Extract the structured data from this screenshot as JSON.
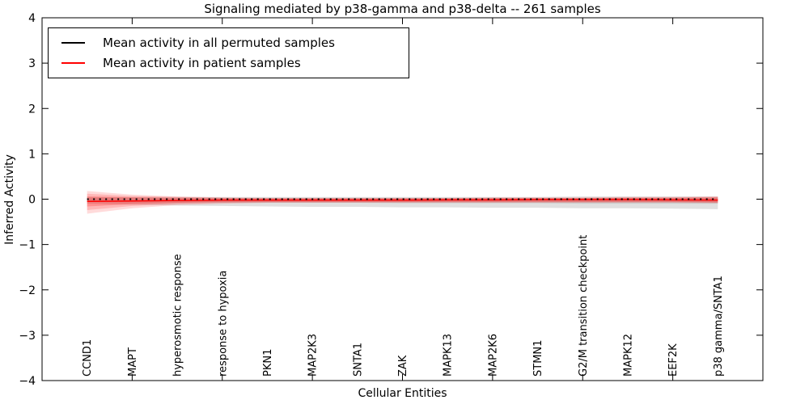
{
  "figure": {
    "title": "Signaling mediated by p38-gamma and p38-delta -- 261 samples",
    "xlabel": "Cellular Entities",
    "ylabel": "Inferred Activity"
  },
  "legend": {
    "entries": [
      {
        "label": "Mean activity in all permuted samples",
        "color": "#000000"
      },
      {
        "label": "Mean activity in patient samples",
        "color": "#ff0000"
      }
    ]
  },
  "chart_data": {
    "type": "line",
    "title": "Signaling mediated by p38-gamma and p38-delta -- 261 samples",
    "xlabel": "Cellular Entities",
    "ylabel": "Inferred Activity",
    "xlim": [
      0,
      16
    ],
    "ylim": [
      -4,
      4
    ],
    "grid": false,
    "legend_position": "upper left",
    "x_categories": [
      "CCND1",
      "MAPT",
      "hyperosmotic response",
      "response to hypoxia",
      "PKN1",
      "MAP2K3",
      "SNTA1",
      "ZAK",
      "MAPK13",
      "MAP2K6",
      "STMN1",
      "G2/M transition checkpoint",
      "MAPK12",
      "EEF2K",
      "p38 gamma/SNTA1"
    ],
    "x_positions": [
      1,
      2,
      3,
      4,
      5,
      6,
      7,
      8,
      9,
      10,
      11,
      12,
      13,
      14,
      15
    ],
    "x_axis_tick_positions": [
      2,
      4,
      6,
      8,
      10,
      12,
      14
    ],
    "y_ticks": [
      {
        "value": 4,
        "label": "4"
      },
      {
        "value": 3,
        "label": "3"
      },
      {
        "value": 2,
        "label": "2"
      },
      {
        "value": 1,
        "label": "1"
      },
      {
        "value": 0,
        "label": "0"
      },
      {
        "value": -1,
        "label": "−1"
      },
      {
        "value": -2,
        "label": "−2"
      },
      {
        "value": -3,
        "label": "−3"
      },
      {
        "value": -4,
        "label": "−4"
      }
    ],
    "series": [
      {
        "name": "Mean activity in all permuted samples",
        "color": "#000000",
        "line_style": "dotted",
        "values": [
          0,
          0,
          0,
          0,
          0,
          0,
          0,
          0,
          0,
          0,
          0,
          0,
          0,
          0,
          0
        ]
      },
      {
        "name": "Mean activity in patient samples",
        "color": "#ff0000",
        "line_style": "solid",
        "values": [
          -0.05,
          -0.04,
          -0.03,
          -0.02,
          -0.02,
          -0.02,
          -0.02,
          -0.02,
          -0.015,
          -0.015,
          -0.01,
          -0.01,
          -0.01,
          -0.015,
          -0.02
        ]
      }
    ],
    "bands": [
      {
        "name": "permuted-std-outer",
        "color": "#999999",
        "opacity": 0.3,
        "upper": [
          0.05,
          0.05,
          0.05,
          0.05,
          0.05,
          0.05,
          0.05,
          0.05,
          0.05,
          0.05,
          0.05,
          0.06,
          0.06,
          0.06,
          0.06
        ],
        "lower": [
          -0.1,
          -0.12,
          -0.14,
          -0.15,
          -0.16,
          -0.17,
          -0.17,
          -0.18,
          -0.18,
          -0.19,
          -0.19,
          -0.2,
          -0.2,
          -0.21,
          -0.22
        ]
      },
      {
        "name": "permuted-std-inner",
        "color": "#888888",
        "opacity": 0.22,
        "upper": [
          0.02,
          0.02,
          0.02,
          0.02,
          0.02,
          0.02,
          0.02,
          0.02,
          0.02,
          0.02,
          0.02,
          0.02,
          0.02,
          0.02,
          0.02
        ],
        "lower": [
          -0.06,
          -0.07,
          -0.07,
          -0.08,
          -0.08,
          -0.08,
          -0.08,
          -0.09,
          -0.09,
          -0.09,
          -0.09,
          -0.1,
          -0.1,
          -0.1,
          -0.1
        ]
      },
      {
        "name": "patient-std-wide",
        "color": "#ff0000",
        "opacity": 0.14,
        "upper": [
          0.18,
          0.1,
          0.06,
          0.04,
          0.03,
          0.03,
          0.03,
          0.03,
          0.03,
          0.04,
          0.04,
          0.04,
          0.05,
          0.05,
          0.06
        ],
        "lower": [
          -0.32,
          -0.2,
          -0.13,
          -0.1,
          -0.08,
          -0.08,
          -0.08,
          -0.08,
          -0.08,
          -0.08,
          -0.08,
          -0.08,
          -0.08,
          -0.08,
          -0.09
        ]
      },
      {
        "name": "patient-std-mid",
        "color": "#ff0000",
        "opacity": 0.16,
        "upper": [
          0.12,
          0.07,
          0.05,
          0.03,
          0.02,
          0.02,
          0.02,
          0.02,
          0.02,
          0.03,
          0.03,
          0.03,
          0.04,
          0.04,
          0.05
        ],
        "lower": [
          -0.24,
          -0.15,
          -0.1,
          -0.08,
          -0.07,
          -0.07,
          -0.07,
          -0.07,
          -0.07,
          -0.07,
          -0.07,
          -0.07,
          -0.07,
          -0.07,
          -0.08
        ]
      },
      {
        "name": "patient-std-narrow",
        "color": "#ff0000",
        "opacity": 0.2,
        "upper": [
          0.06,
          0.04,
          0.03,
          0.02,
          0.02,
          0.02,
          0.02,
          0.02,
          0.02,
          0.02,
          0.02,
          0.02,
          0.03,
          0.03,
          0.04
        ],
        "lower": [
          -0.16,
          -0.11,
          -0.08,
          -0.06,
          -0.06,
          -0.06,
          -0.06,
          -0.06,
          -0.06,
          -0.06,
          -0.06,
          -0.06,
          -0.06,
          -0.06,
          -0.07
        ]
      }
    ]
  }
}
